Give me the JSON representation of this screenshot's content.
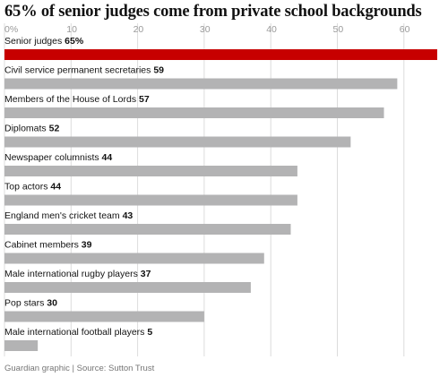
{
  "chart_data": {
    "type": "bar",
    "orientation": "horizontal",
    "title": "65% of senior judges come from private school backgrounds",
    "x_ticks": [
      "0%",
      "10",
      "20",
      "30",
      "40",
      "50",
      "60"
    ],
    "xlim": [
      0,
      65
    ],
    "grid": true,
    "categories": [
      "Senior judges",
      "Civil service permanent secretaries",
      "Members of the House of Lords",
      "Diplomats",
      "Newspaper columnists",
      "Top actors",
      "England men's cricket team",
      "Cabinet members",
      "Male international rugby players",
      "Pop stars",
      "Male international football players"
    ],
    "values": [
      65,
      59,
      57,
      52,
      44,
      44,
      43,
      39,
      37,
      30,
      5
    ],
    "value_labels": [
      "65%",
      "59",
      "57",
      "52",
      "44",
      "44",
      "43",
      "39",
      "37",
      "30",
      "5"
    ],
    "highlight_color": "#c70000",
    "bar_color": "#b3b3b4",
    "source": "Guardian graphic | Source: Sutton Trust"
  }
}
